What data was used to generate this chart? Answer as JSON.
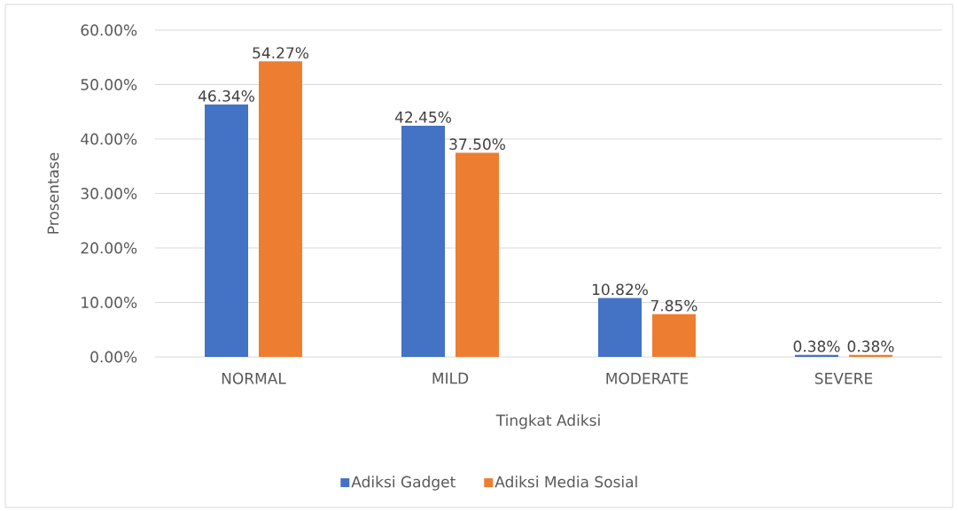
{
  "chart_data": {
    "type": "bar",
    "xlabel": "Tingkat Adiksi",
    "ylabel": "Prosentase",
    "categories": [
      "NORMAL",
      "MILD",
      "MODERATE",
      "SEVERE"
    ],
    "series": [
      {
        "name": "Adiksi Gadget",
        "color": "#4472c4",
        "values": [
          46.34,
          42.45,
          10.82,
          0.38
        ],
        "value_labels": [
          "46.34%",
          "42.45%",
          "10.82%",
          "0.38%"
        ]
      },
      {
        "name": "Adiksi Media Sosial",
        "color": "#ed7d31",
        "values": [
          54.27,
          37.5,
          7.85,
          0.38
        ],
        "value_labels": [
          "54.27%",
          "37.50%",
          "7.85%",
          "0.38%"
        ]
      }
    ],
    "ylim": [
      0,
      60
    ],
    "yticks": [
      {
        "value": 0,
        "label": "0.00%"
      },
      {
        "value": 10,
        "label": "10.00%"
      },
      {
        "value": 20,
        "label": "20.00%"
      },
      {
        "value": 30,
        "label": "30.00%"
      },
      {
        "value": 40,
        "label": "40.00%"
      },
      {
        "value": 50,
        "label": "50.00%"
      },
      {
        "value": 60,
        "label": "60.00%"
      }
    ],
    "grid": "y",
    "legend": "bottom"
  }
}
